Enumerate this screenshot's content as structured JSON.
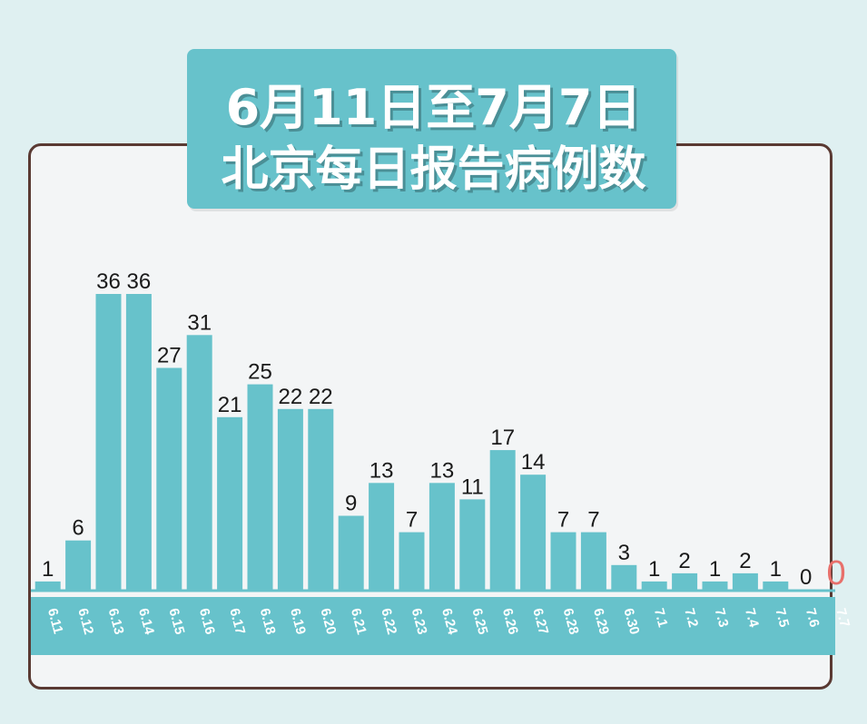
{
  "title": {
    "line1": "6月11日至7月7日",
    "line2": "北京每日报告病例数"
  },
  "colors": {
    "bar": "#67c2cb",
    "axis_band": "#67c2cb",
    "highlight": "#e8706b",
    "label": "#1a1a1a"
  },
  "chart_data": {
    "type": "bar",
    "title": "6月11日至7月7日 北京每日报告病例数",
    "xlabel": "",
    "ylabel": "",
    "ylim": [
      0,
      36
    ],
    "grid": false,
    "categories": [
      "6.11",
      "6.12",
      "6.13",
      "6.14",
      "6.15",
      "6.16",
      "6.17",
      "6.18",
      "6.19",
      "6.20",
      "6.21",
      "6.22",
      "6.23",
      "6.24",
      "6.25",
      "6.26",
      "6.27",
      "6.28",
      "6.29",
      "6.30",
      "7.1",
      "7.2",
      "7.3",
      "7.4",
      "7.5",
      "7.6",
      "7.7"
    ],
    "values": [
      1,
      6,
      36,
      36,
      27,
      31,
      21,
      25,
      22,
      22,
      9,
      13,
      7,
      13,
      11,
      17,
      14,
      7,
      7,
      3,
      1,
      2,
      1,
      2,
      1,
      0,
      0
    ],
    "highlight_last_label": true
  }
}
